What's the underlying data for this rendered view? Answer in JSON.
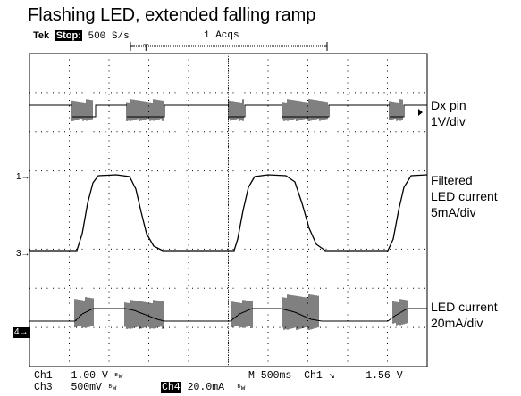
{
  "title": "Flashing LED, extended falling ramp",
  "header": {
    "brand": "Tek",
    "state": "Stop:",
    "rate": "500 S/s",
    "acquisitions": "1 Acqs",
    "trigger_marker": "T"
  },
  "channel_labels": [
    {
      "line1": "Dx pin",
      "line2": "1V/div"
    },
    {
      "line1": "Filtered",
      "line2": "LED current",
      "line3": "5mA/div"
    },
    {
      "line1": "LED current",
      "line2": "20mA/div"
    }
  ],
  "markers": {
    "ch1": "1→",
    "ch3": "3→",
    "ch4": "4→"
  },
  "status": {
    "ch1_name": "Ch1",
    "ch1_scale": "1.00 V",
    "ch1_unit": "ᴮw",
    "ch3_name": "Ch3",
    "ch3_scale": "500mV",
    "ch3_unit": "ᴮw",
    "ch4_name": "Ch4",
    "ch4_scale": "20.0mA",
    "ch4_unit": "ᴮw",
    "timebase": "M 500ms",
    "trigger_source": "Ch1",
    "trigger_slope": "↘",
    "trigger_level": "1.56 V"
  },
  "colors": {
    "background": "#ffffff",
    "trace": "#000000",
    "grid": "#000000"
  }
}
